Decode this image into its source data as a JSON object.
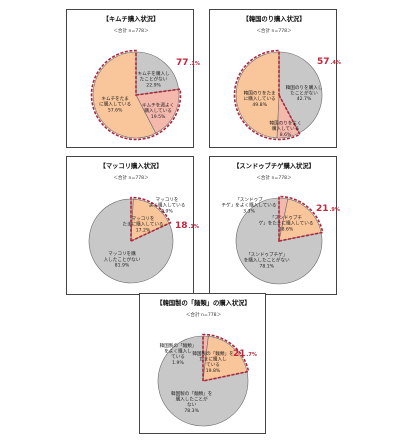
{
  "colors": {
    "pink_slice": "#f4b8ad",
    "orange_slice": "#f9c59a",
    "gray_slice": "#c8c8c8",
    "highlight_dash": "#b2263a",
    "percent_text": "#c0283b",
    "frame": "#444444"
  },
  "chart_data": [
    {
      "type": "pie",
      "title": "【キムチ購入状況】",
      "subtitle": "＜合計 n=778＞",
      "highlight_total": {
        "int": "77",
        "dec": ".1%"
      },
      "slices": [
        {
          "label": "キムチを購入したことがない",
          "value": "22.9%",
          "share": 22.9,
          "color": "gray"
        },
        {
          "label": "キムチを週よく購入している",
          "value": "19.5%",
          "share": 19.5,
          "color": "pink",
          "highlight": true
        },
        {
          "label": "キムチをたまに購入している",
          "value": "57.6%",
          "share": 57.6,
          "color": "orange",
          "highlight": true
        }
      ]
    },
    {
      "type": "pie",
      "title": "【韓国のり購入状況】",
      "subtitle": "＜合計 n=778＞",
      "highlight_total": {
        "int": "57",
        "dec": ".4%"
      },
      "slices": [
        {
          "label": "韓国のりを購入したことがない",
          "value": "42.7%",
          "share": 42.7,
          "color": "gray"
        },
        {
          "label": "韓国のりをよく購入している",
          "value": "8.6%",
          "share": 8.6,
          "color": "pink",
          "highlight": true
        },
        {
          "label": "韓国のりをたまに購入している",
          "value": "49.8%",
          "share": 49.8,
          "color": "orange",
          "highlight": true
        }
      ]
    },
    {
      "type": "pie",
      "title": "【マッコリ購入状況】",
      "subtitle": "＜合計 n=778＞",
      "highlight_total": {
        "int": "18",
        "dec": ".1%"
      },
      "slices": [
        {
          "label": "マッコリをよく購入している",
          "value": "0.9%",
          "share": 0.9,
          "color": "pink",
          "highlight": true
        },
        {
          "label": "マッコリをたまに購入している",
          "value": "17.2%",
          "share": 17.2,
          "color": "orange",
          "highlight": true
        },
        {
          "label": "マッコリを購入したことがない",
          "value": "81.9%",
          "share": 81.9,
          "color": "gray"
        }
      ]
    },
    {
      "type": "pie",
      "title": "【スンドゥブチゲ購入状況】",
      "subtitle": "＜合計 n=778＞",
      "highlight_total": {
        "int": "21",
        "dec": ".9%"
      },
      "slices": [
        {
          "label": "「スンドゥブチゲ」をよく購入している",
          "value": "3.3%",
          "share": 3.3,
          "color": "pink",
          "highlight": true
        },
        {
          "label": "「スンドゥブチゲ」をたまに購入している",
          "value": "18.6%",
          "share": 18.6,
          "color": "orange",
          "highlight": true
        },
        {
          "label": "「スンドゥブチゲ」を購入したことがない",
          "value": "78.1%",
          "share": 78.1,
          "color": "gray"
        }
      ]
    },
    {
      "type": "pie",
      "title": "【韓国製の「麺類」の購入状況】",
      "subtitle": "＜合計 n=778＞",
      "highlight_total": {
        "int": "21",
        "dec": ".7%"
      },
      "slices": [
        {
          "label": "韓国製の「麺類」をよく購入している",
          "value": "1.9%",
          "share": 1.9,
          "color": "pink",
          "highlight": true
        },
        {
          "label": "韓国製の「麺類」をたまに購入している",
          "value": "19.8%",
          "share": 19.8,
          "color": "orange",
          "highlight": true
        },
        {
          "label": "韓国製の「麺類」を購入したことがない",
          "value": "78.3%",
          "share": 78.3,
          "color": "gray"
        }
      ]
    }
  ]
}
